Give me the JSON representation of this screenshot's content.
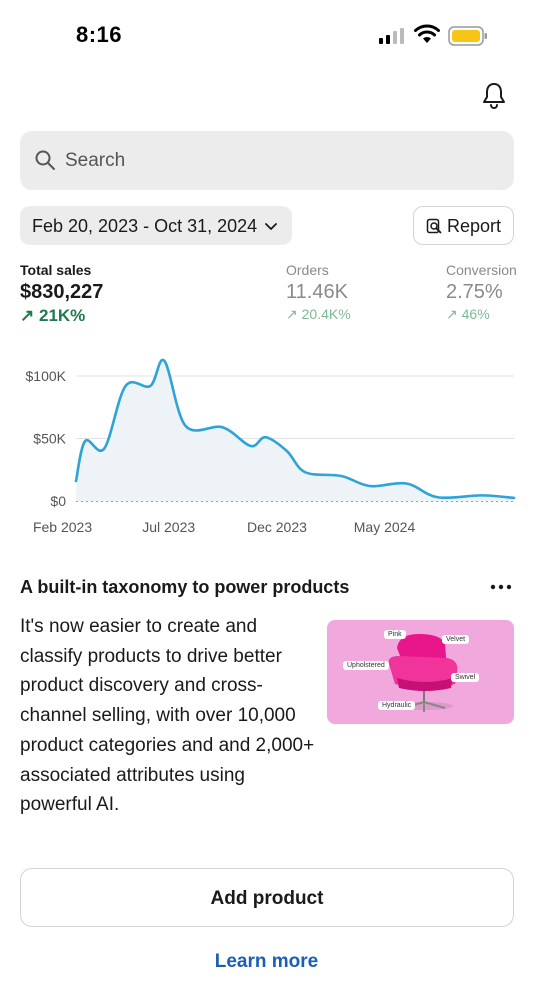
{
  "status_bar": {
    "time": "8:16",
    "icons": [
      "cellular-signal-icon",
      "wifi-icon",
      "battery-icon"
    ],
    "battery_color": "#f5c518"
  },
  "header": {
    "notification_icon": "bell-icon"
  },
  "search": {
    "placeholder": "Search",
    "icon": "search-icon"
  },
  "filters": {
    "date_range": "Feb 20, 2023 - Oct 31, 2024",
    "report_label": "Report",
    "report_icon": "report-search-icon"
  },
  "metrics": [
    {
      "label": "Total sales",
      "value": "$830,227",
      "change": "21K%",
      "active": true
    },
    {
      "label": "Orders",
      "value": "11.46K",
      "change": "20.4K%",
      "active": false
    },
    {
      "label": "Conversion",
      "value": "2.75%",
      "change": "46%",
      "active": false
    }
  ],
  "colors": {
    "accent_positive": "#1f7a4c",
    "chart_line": "#2ea3d6",
    "link": "#1a5fb4",
    "promo_bg": "#f0a8dd"
  },
  "chart_data": {
    "type": "line",
    "x_ticks": [
      "Feb 2023",
      "Jul 2023",
      "Dec 2023",
      "May 2024"
    ],
    "y_ticks": [
      "$100K",
      "$50K",
      "$0"
    ],
    "ylim": [
      0,
      100000
    ],
    "grid": true,
    "series": [
      {
        "values": [
          {
            "x": "2023-02-20",
            "y": 16000
          },
          {
            "x": "2023-03-05",
            "y": 48000
          },
          {
            "x": "2023-04-01",
            "y": 42000
          },
          {
            "x": "2023-05-01",
            "y": 92000
          },
          {
            "x": "2023-06-05",
            "y": 92000
          },
          {
            "x": "2023-06-25",
            "y": 112000
          },
          {
            "x": "2023-07-25",
            "y": 60000
          },
          {
            "x": "2023-09-15",
            "y": 59000
          },
          {
            "x": "2023-10-25",
            "y": 44000
          },
          {
            "x": "2023-11-15",
            "y": 51000
          },
          {
            "x": "2023-12-15",
            "y": 40000
          },
          {
            "x": "2024-01-10",
            "y": 23000
          },
          {
            "x": "2024-03-01",
            "y": 20000
          },
          {
            "x": "2024-04-10",
            "y": 12000
          },
          {
            "x": "2024-06-01",
            "y": 14000
          },
          {
            "x": "2024-07-15",
            "y": 3000
          },
          {
            "x": "2024-09-15",
            "y": 4500
          },
          {
            "x": "2024-10-31",
            "y": 2500
          }
        ]
      },
      {
        "style": "dotted",
        "values": [
          {
            "x": "2023-02-20",
            "y": 0
          },
          {
            "x": "2024-10-31",
            "y": 0
          }
        ]
      }
    ]
  },
  "card": {
    "title": "A built-in taxonomy to power products",
    "more_icon": "more-horizontal-icon",
    "body": "It's now easier to create and classify products to drive better product discovery and cross-channel selling, with over 10,000 product categories and and 2,000+ associated attributes using powerful AI.",
    "image_tags": [
      "Pink",
      "Velvet",
      "Upholstered",
      "Swivel",
      "Hydraulic"
    ],
    "add_product_label": "Add product",
    "learn_more_label": "Learn more"
  }
}
